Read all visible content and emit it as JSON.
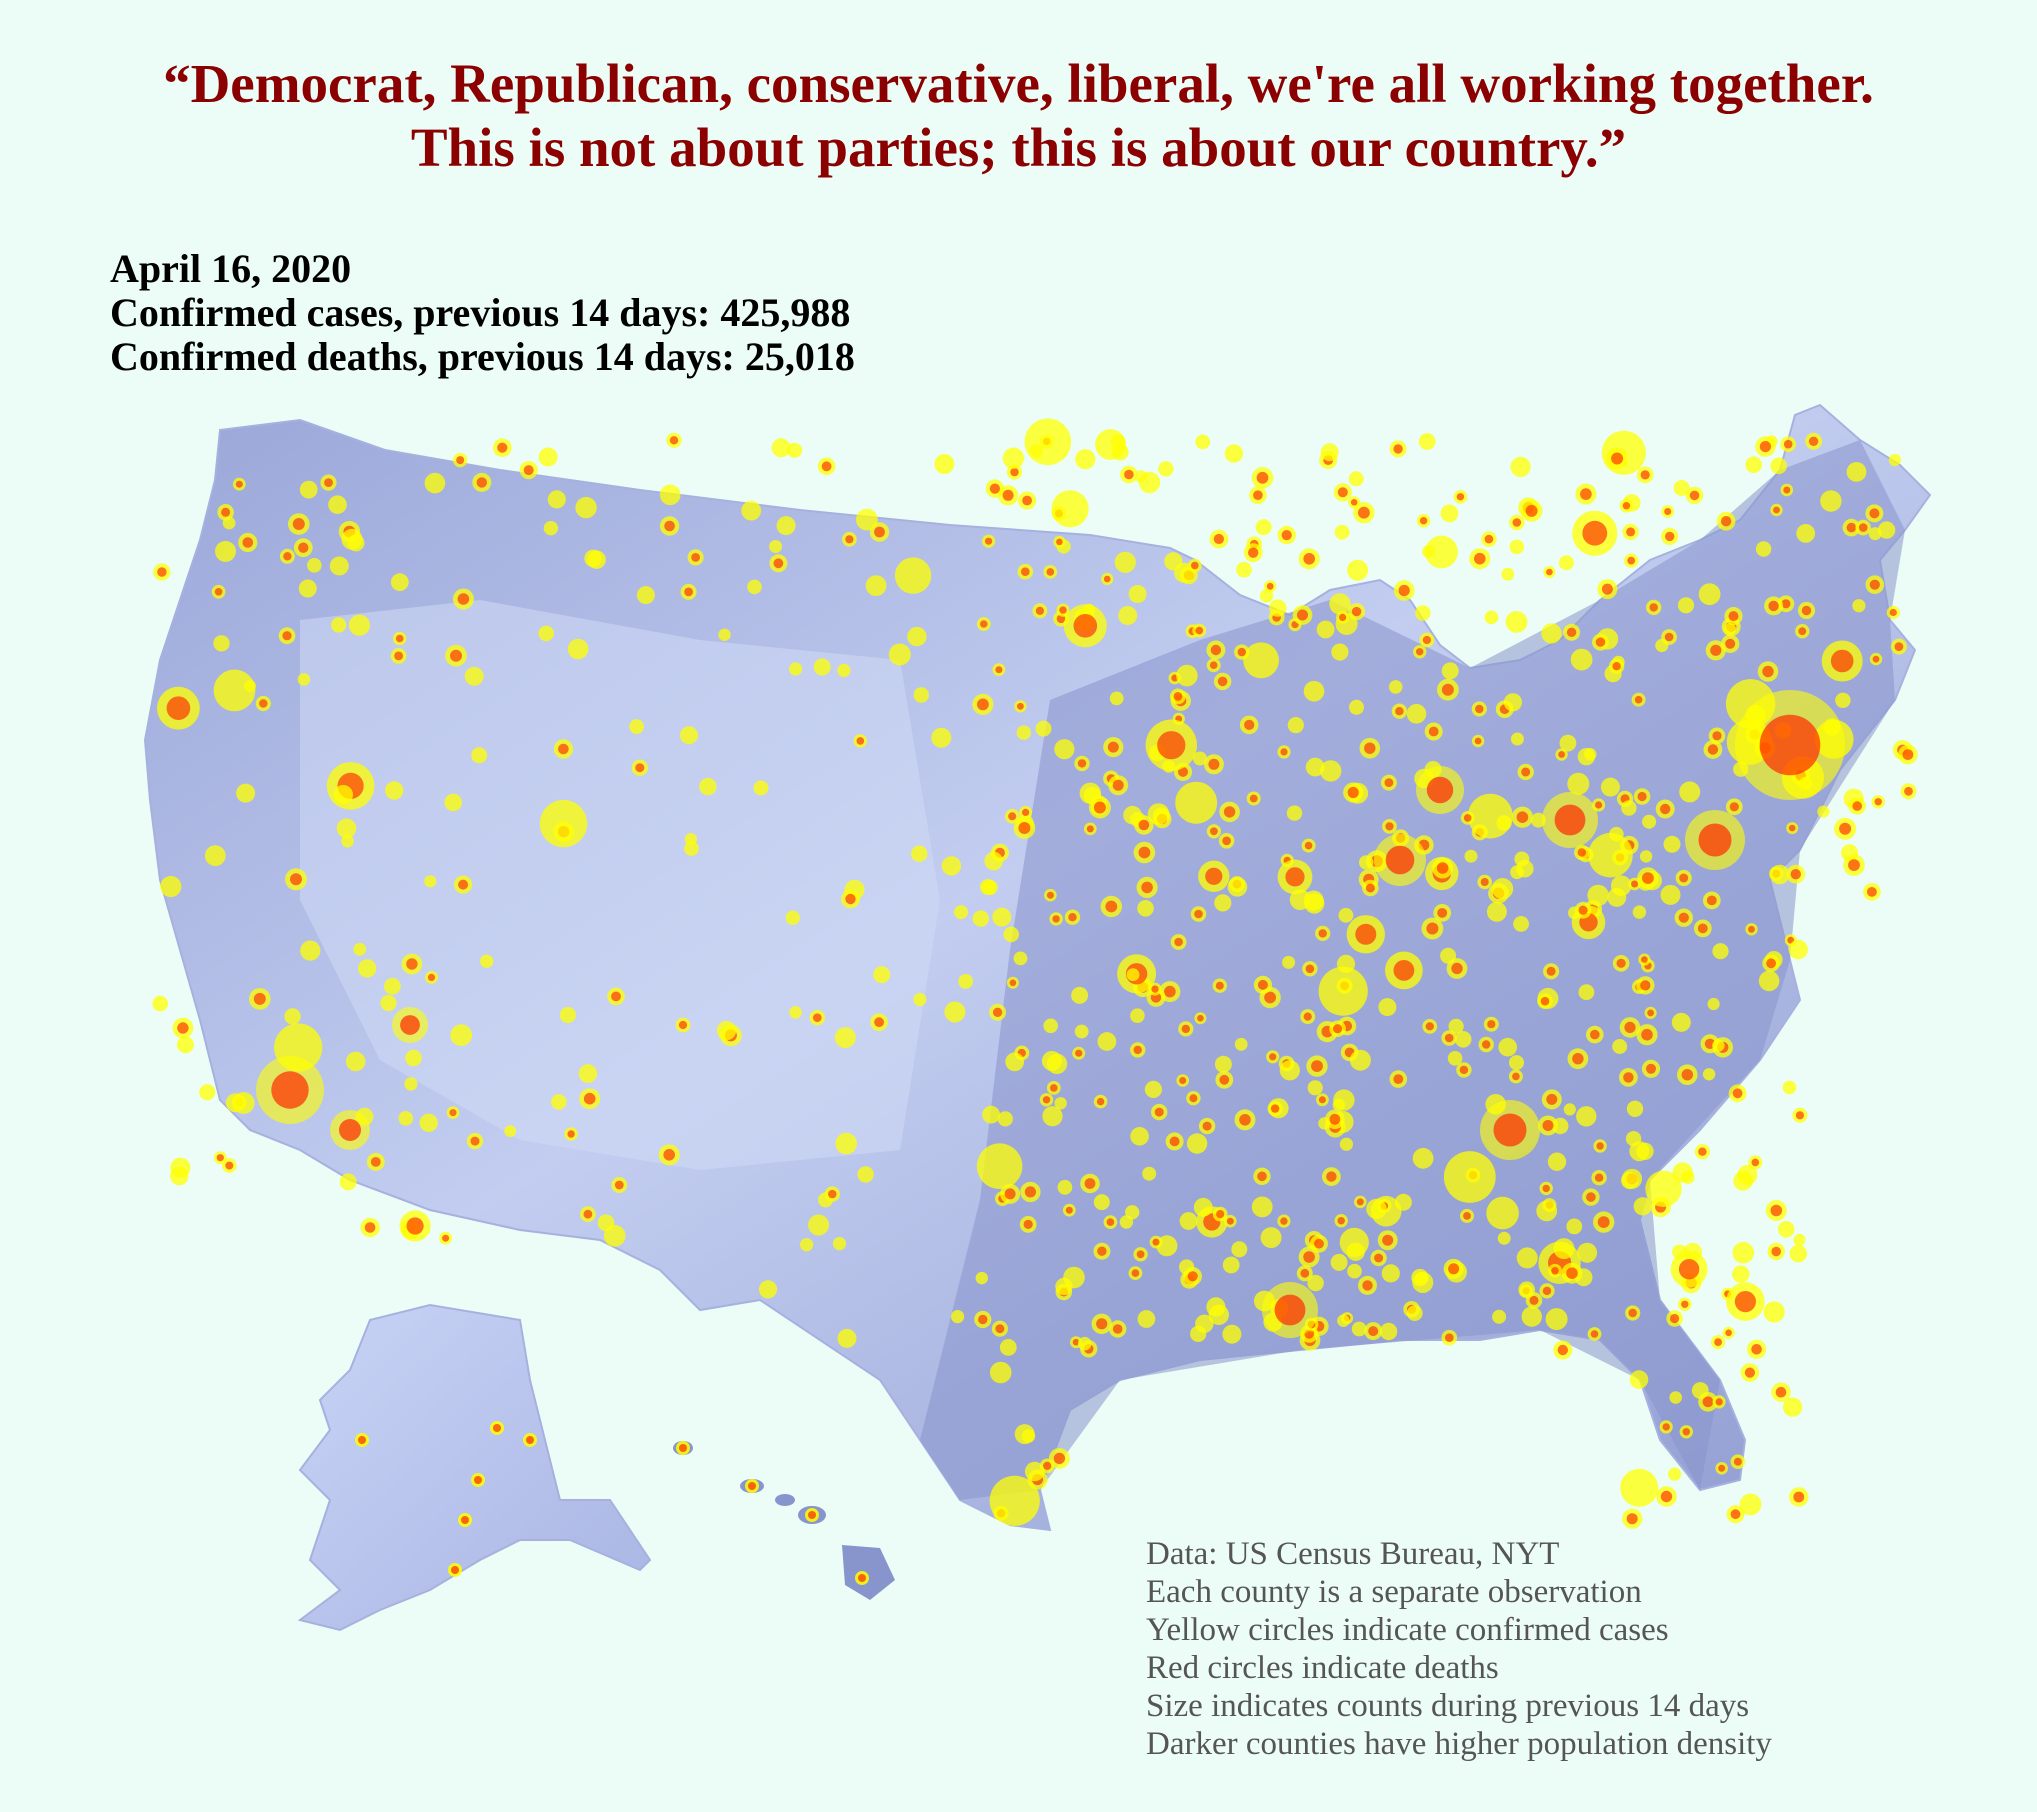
{
  "title": {
    "line1": "“Democrat, Republican, conservative, liberal, we're all working together.",
    "line2": "This is not about parties; this is about our country.”"
  },
  "stats": {
    "date": "April 16, 2020",
    "cases": "Confirmed cases, previous 14 days: 425,988",
    "deaths": "Confirmed deaths, previous 14 days: 25,018"
  },
  "notes": [
    "Data: US Census Bureau, NYT",
    "Each county is a separate observation",
    "Yellow  circles indicate confirmed cases",
    "Red circles indicate deaths",
    "Size indicates counts during previous 14 days",
    "Darker counties have higher population density"
  ],
  "colors": {
    "background": "#ecfdf7",
    "title": "#8b0000",
    "land_dark": "#7f8ac3",
    "land_light": "#c9d5f2",
    "cases": "#ffff00",
    "deaths": "#ff2a00"
  },
  "legend_meaning": {
    "cases_circle": "yellow",
    "deaths_circle": "red",
    "size": "count during previous 14 days",
    "fill": "population density"
  }
}
